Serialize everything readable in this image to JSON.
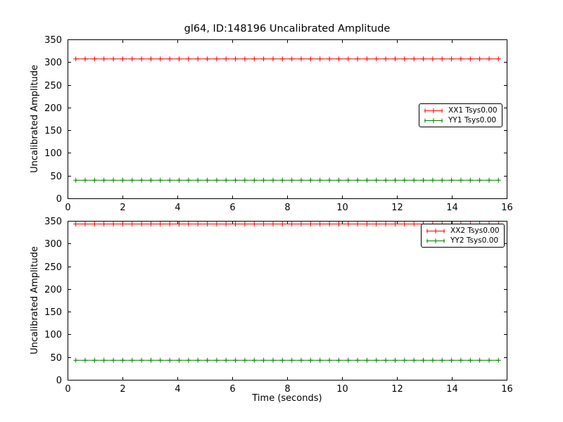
{
  "chart_data": {
    "type": "line",
    "title": "gl64, ID:148196 Uncalibrated Amplitude",
    "xlabel": "Time (seconds)",
    "axis_color": "#000000",
    "background_color": "#ffffff",
    "subplots": [
      {
        "ylabel": "Uncalibrated Amplitude",
        "xlim": [
          0,
          16
        ],
        "ylim": [
          0,
          350
        ],
        "xticks": [
          0,
          2,
          4,
          6,
          8,
          10,
          12,
          14,
          16
        ],
        "yticks": [
          0,
          50,
          100,
          150,
          200,
          250,
          300,
          350
        ],
        "x_start": 0.3,
        "x_end": 15.7,
        "n_points": 46,
        "grid": false,
        "legend_position": "center-right",
        "series": [
          {
            "name": "XX1 Tsys0.00",
            "color": "#ff0000",
            "y_value": 307,
            "marker": "plus",
            "style": "errorbar"
          },
          {
            "name": "YY1 Tsys0.00",
            "color": "#008000",
            "y_value": 40,
            "marker": "plus",
            "style": "errorbar"
          }
        ]
      },
      {
        "ylabel": "Uncalibrated Amplitude",
        "xlim": [
          0,
          16
        ],
        "ylim": [
          0,
          350
        ],
        "xticks": [
          0,
          2,
          4,
          6,
          8,
          10,
          12,
          14,
          16
        ],
        "yticks": [
          0,
          50,
          100,
          150,
          200,
          250,
          300,
          350
        ],
        "x_start": 0.3,
        "x_end": 15.7,
        "n_points": 46,
        "grid": false,
        "legend_position": "top-right",
        "series": [
          {
            "name": "XX2 Tsys0.00",
            "color": "#ff0000",
            "y_value": 343,
            "marker": "plus",
            "style": "errorbar"
          },
          {
            "name": "YY2 Tsys0.00",
            "color": "#008000",
            "y_value": 43,
            "marker": "plus",
            "style": "errorbar"
          }
        ]
      }
    ]
  }
}
